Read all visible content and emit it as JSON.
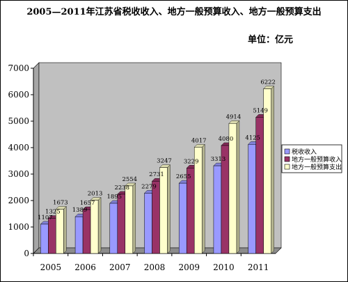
{
  "chart_data": {
    "type": "bar",
    "title": "2005—2011年江苏省税收收入、地方一般预算收入、地方一般预算支出",
    "unit": "单位：亿元",
    "categories": [
      "2005",
      "2006",
      "2007",
      "2008",
      "2009",
      "2010",
      "2011"
    ],
    "series": [
      {
        "name": "税收收入",
        "color": "#9999FF",
        "values": [
          1107,
          1389,
          1895,
          2279,
          2655,
          3313,
          4125
        ]
      },
      {
        "name": "地方一般预算收入",
        "color": "#993366",
        "values": [
          1325,
          1657,
          2238,
          2731,
          3229,
          4080,
          5149
        ]
      },
      {
        "name": "地方一般预算支出",
        "color": "#FFFFCC",
        "values": [
          1673,
          2013,
          2554,
          3247,
          4017,
          4914,
          6222
        ]
      }
    ],
    "data_labels": [
      [
        "1107",
        "1389",
        "1895",
        "2279",
        "2655",
        "3313",
        "4125"
      ],
      [
        "1325",
        "1657",
        "2238",
        "2731",
        "3229",
        "4080",
        "5149"
      ],
      [
        "1673",
        "2013",
        "2554",
        "3247",
        "4017",
        "4914",
        "6222"
      ]
    ],
    "yticks": [
      "0",
      "1000",
      "2000",
      "3000",
      "4000",
      "5000",
      "6000",
      "7000"
    ],
    "ylim": [
      0,
      7000
    ],
    "grid": false,
    "plot_background": "#C0C0C0",
    "legend": "right"
  }
}
